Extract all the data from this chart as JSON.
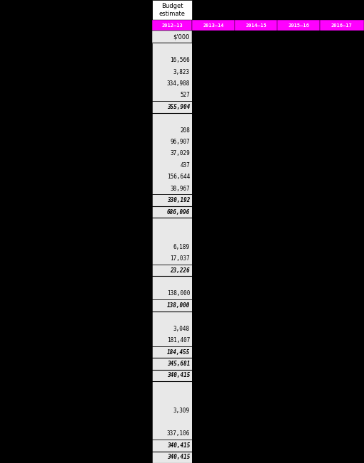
{
  "title_line1": "Budget",
  "title_line2": "estimate",
  "col_headers": [
    "2012–13",
    "2013–14",
    "2014–15",
    "2015–16",
    "2016–17"
  ],
  "col_subheader": "$'000",
  "magenta": "#FF00FF",
  "fig_width": 5.12,
  "fig_height": 6.51,
  "dpi": 100,
  "rows": [
    {
      "value": "",
      "bold": false,
      "line_above": false,
      "line_below": false
    },
    {
      "value": "16,566",
      "bold": false,
      "line_above": false,
      "line_below": false
    },
    {
      "value": "3,823",
      "bold": false,
      "line_above": false,
      "line_below": false
    },
    {
      "value": "334,988",
      "bold": false,
      "line_above": false,
      "line_below": false
    },
    {
      "value": "527",
      "bold": false,
      "line_above": false,
      "line_below": false
    },
    {
      "value": "355,904",
      "bold": true,
      "line_above": true,
      "line_below": true
    },
    {
      "value": "",
      "bold": false,
      "line_above": false,
      "line_below": false
    },
    {
      "value": "208",
      "bold": false,
      "line_above": false,
      "line_below": false
    },
    {
      "value": "96,907",
      "bold": false,
      "line_above": false,
      "line_below": false
    },
    {
      "value": "37,029",
      "bold": false,
      "line_above": false,
      "line_below": false
    },
    {
      "value": "437",
      "bold": false,
      "line_above": false,
      "line_below": false
    },
    {
      "value": "156,644",
      "bold": false,
      "line_above": false,
      "line_below": false
    },
    {
      "value": "38,967",
      "bold": false,
      "line_above": false,
      "line_below": false
    },
    {
      "value": "330,192",
      "bold": true,
      "line_above": true,
      "line_below": true
    },
    {
      "value": "686,096",
      "bold": true,
      "line_above": false,
      "line_below": true
    },
    {
      "value": "",
      "bold": false,
      "line_above": false,
      "line_below": false
    },
    {
      "value": "",
      "bold": false,
      "line_above": false,
      "line_below": false
    },
    {
      "value": "6,189",
      "bold": false,
      "line_above": false,
      "line_below": false
    },
    {
      "value": "17,037",
      "bold": false,
      "line_above": false,
      "line_below": false
    },
    {
      "value": "23,226",
      "bold": true,
      "line_above": true,
      "line_below": true
    },
    {
      "value": "",
      "bold": false,
      "line_above": false,
      "line_below": false
    },
    {
      "value": "138,000",
      "bold": false,
      "line_above": false,
      "line_below": false
    },
    {
      "value": "138,000",
      "bold": true,
      "line_above": true,
      "line_below": true
    },
    {
      "value": "",
      "bold": false,
      "line_above": false,
      "line_below": false
    },
    {
      "value": "3,048",
      "bold": false,
      "line_above": false,
      "line_below": false
    },
    {
      "value": "181,407",
      "bold": false,
      "line_above": false,
      "line_below": false
    },
    {
      "value": "184,455",
      "bold": true,
      "line_above": true,
      "line_below": true
    },
    {
      "value": "345,681",
      "bold": true,
      "line_above": false,
      "line_below": true
    },
    {
      "value": "340,415",
      "bold": true,
      "line_above": false,
      "line_below": true
    },
    {
      "value": "",
      "bold": false,
      "line_above": false,
      "line_below": false
    },
    {
      "value": "",
      "bold": false,
      "line_above": false,
      "line_below": false
    },
    {
      "value": "3,309",
      "bold": false,
      "line_above": false,
      "line_below": false
    },
    {
      "value": "",
      "bold": false,
      "line_above": false,
      "line_below": false
    },
    {
      "value": "337,106",
      "bold": false,
      "line_above": false,
      "line_below": false
    },
    {
      "value": "340,415",
      "bold": true,
      "line_above": true,
      "line_below": true
    },
    {
      "value": "340,415",
      "bold": true,
      "line_above": false,
      "line_below": true
    }
  ]
}
